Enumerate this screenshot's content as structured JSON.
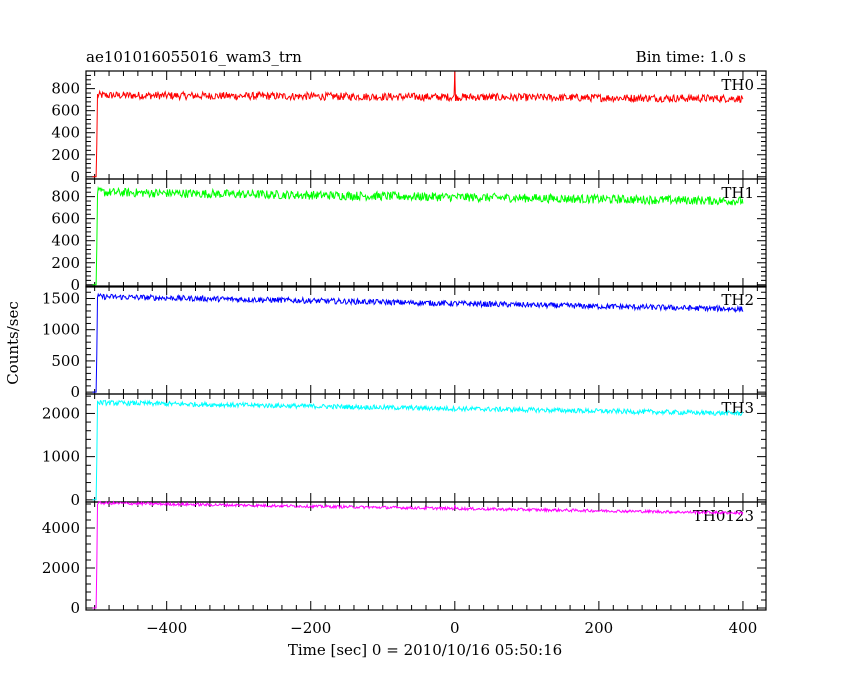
{
  "chart_data": {
    "type": "line",
    "title": "ae101016055016_wam3_trn",
    "bin_time": "Bin time: 1.0 s",
    "xlabel": "Time [sec] 0 = 2010/10/16 05:50:16",
    "ylabel": "Counts/sec",
    "xlim": [
      -512,
      432
    ],
    "x_ticks": [
      -400,
      -200,
      0,
      200,
      400
    ],
    "x_tick_labels": [
      "−400",
      "−200",
      "0",
      "200",
      "400"
    ],
    "panels": [
      {
        "name": "TH0",
        "color": "#ff0000",
        "ylim": [
          -20,
          960
        ],
        "y_ticks": [
          0,
          200,
          400,
          600,
          800
        ],
        "y_tick_labels": [
          "0",
          "200",
          "400",
          "600",
          "800"
        ],
        "onset": -497,
        "start_level": 740,
        "end_level": 710,
        "noise": 35,
        "spikes": [
          [
            0,
            955
          ]
        ]
      },
      {
        "name": "TH1",
        "color": "#00ff00",
        "ylim": [
          -20,
          960
        ],
        "y_ticks": [
          0,
          200,
          400,
          600,
          800
        ],
        "y_tick_labels": [
          "0",
          "200",
          "400",
          "600",
          "800"
        ],
        "onset": -497,
        "start_level": 840,
        "end_level": 760,
        "noise": 40,
        "spikes": []
      },
      {
        "name": "TH2",
        "color": "#0000ff",
        "ylim": [
          -30,
          1700
        ],
        "y_ticks": [
          0,
          500,
          1000,
          1500
        ],
        "y_tick_labels": [
          "0",
          "500",
          "1000",
          "1500"
        ],
        "onset": -497,
        "start_level": 1530,
        "end_level": 1330,
        "noise": 45,
        "spikes": []
      },
      {
        "name": "TH3",
        "color": "#00ffff",
        "ylim": [
          -50,
          2450
        ],
        "y_ticks": [
          0,
          1000,
          2000
        ],
        "y_tick_labels": [
          "0",
          "1000",
          "2000"
        ],
        "onset": -497,
        "start_level": 2250,
        "end_level": 2000,
        "noise": 55,
        "spikes": []
      },
      {
        "name": "TH0123",
        "color": "#ff00ff",
        "ylim": [
          -100,
          5300
        ],
        "y_ticks": [
          0,
          2000,
          4000
        ],
        "y_tick_labels": [
          "0",
          "2000",
          "4000"
        ],
        "onset": -497,
        "start_level": 5250,
        "end_level": 4750,
        "noise": 70,
        "spikes": [
          [
            0,
            5150
          ]
        ]
      }
    ]
  }
}
